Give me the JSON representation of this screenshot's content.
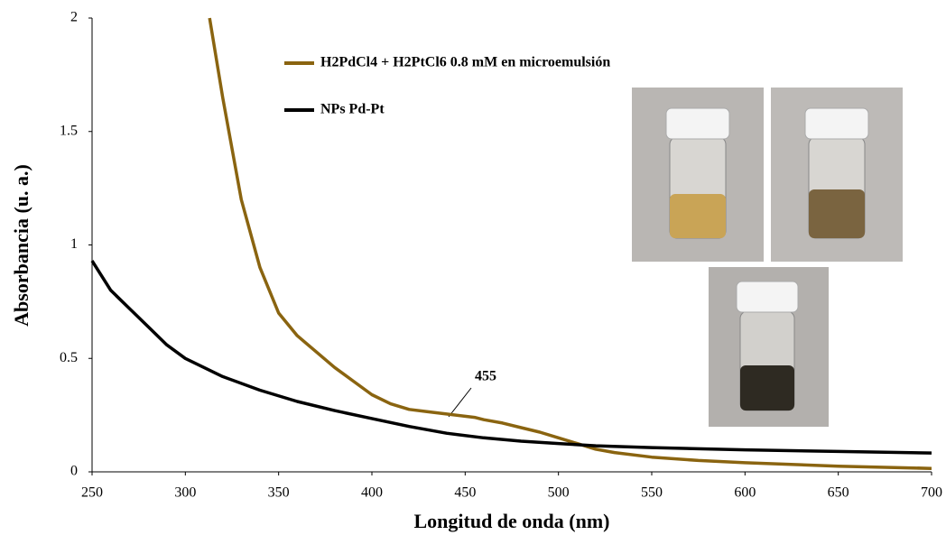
{
  "chart_data": {
    "type": "line",
    "xlabel": "Longitud de onda (nm)",
    "ylabel": "Absorbancia (u. a.)",
    "xlim": [
      250,
      700
    ],
    "xticks": [
      250,
      300,
      350,
      400,
      450,
      500,
      550,
      600,
      650,
      700
    ],
    "ylim": [
      0,
      2
    ],
    "yticks": [
      0,
      0.5,
      1,
      1.5,
      2
    ],
    "grid": false,
    "legend": "top",
    "annotations": [
      {
        "text": "455"
      }
    ],
    "series": [
      {
        "name": "H2PdCl4 + H2PtCl6 0.8 mM en microemulsión",
        "color": "#8a6410",
        "x": [
          313,
          320,
          330,
          340,
          350,
          360,
          370,
          380,
          390,
          400,
          410,
          420,
          430,
          440,
          450,
          455,
          460,
          470,
          480,
          490,
          500,
          510,
          520,
          530,
          550,
          575,
          600,
          650,
          700
        ],
        "values": [
          2.0,
          1.65,
          1.2,
          0.9,
          0.7,
          0.6,
          0.53,
          0.46,
          0.4,
          0.34,
          0.3,
          0.275,
          0.265,
          0.255,
          0.245,
          0.24,
          0.23,
          0.215,
          0.195,
          0.175,
          0.15,
          0.125,
          0.1,
          0.085,
          0.065,
          0.05,
          0.04,
          0.025,
          0.015
        ]
      },
      {
        "name": "NPs Pd-Pt",
        "color": "#000000",
        "x": [
          250,
          260,
          270,
          280,
          290,
          300,
          320,
          340,
          360,
          380,
          400,
          420,
          440,
          460,
          480,
          500,
          520,
          550,
          600,
          650,
          700
        ],
        "values": [
          0.93,
          0.8,
          0.72,
          0.64,
          0.56,
          0.5,
          0.42,
          0.36,
          0.31,
          0.27,
          0.235,
          0.2,
          0.17,
          0.15,
          0.135,
          0.125,
          0.115,
          0.107,
          0.097,
          0.09,
          0.083
        ]
      }
    ]
  }
}
